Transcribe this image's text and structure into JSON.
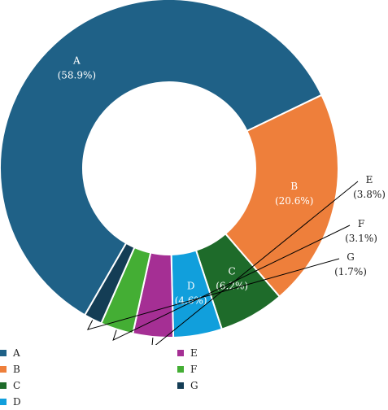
{
  "chart_data": {
    "type": "pie",
    "donut": true,
    "categories": [
      "A",
      "B",
      "C",
      "D",
      "E",
      "F",
      "G"
    ],
    "values": [
      58.9,
      20.6,
      6.2,
      4.6,
      3.8,
      3.1,
      1.7
    ],
    "labels": [
      "(58.9%)",
      "(20.6%)",
      "(6.2%)",
      "(4.6%)",
      "(3.8%)",
      "(3.1%)",
      "(1.7%)"
    ],
    "colors": [
      "#1f6187",
      "#ee7f3b",
      "#1e6b2a",
      "#119fdc",
      "#a52f94",
      "#44ae34",
      "#143d55"
    ],
    "legend_position": "bottom"
  }
}
